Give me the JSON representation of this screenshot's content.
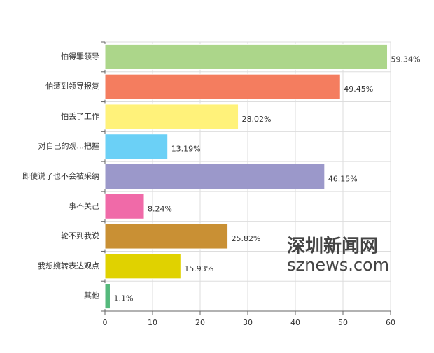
{
  "chart_data": {
    "type": "bar",
    "orientation": "horizontal",
    "categories": [
      "怕得罪领导",
      "怕遭到领导报复",
      "怕丢了工作",
      "对自己的观...把握",
      "即使说了也不会被采纳",
      "事不关己",
      "轮不到我说",
      "我想婉转表达观点",
      "其他"
    ],
    "values": [
      59.34,
      49.45,
      28.02,
      13.19,
      46.15,
      8.24,
      25.82,
      15.93,
      1.1
    ],
    "value_labels": [
      "59.34%",
      "49.45%",
      "28.02%",
      "13.19%",
      "46.15%",
      "8.24%",
      "25.82%",
      "15.93%",
      "1.1%"
    ],
    "colors": [
      "#acd68a",
      "#f47d5f",
      "#fff27a",
      "#6bd0f6",
      "#9b98ca",
      "#f06aa8",
      "#c99034",
      "#e0d200",
      "#55b97c"
    ],
    "xlim": [
      0,
      60
    ],
    "xticks": [
      0,
      10,
      20,
      30,
      40,
      50,
      60
    ],
    "grid": true,
    "annotations": [
      "深圳新闻网",
      "sznews.com"
    ]
  }
}
